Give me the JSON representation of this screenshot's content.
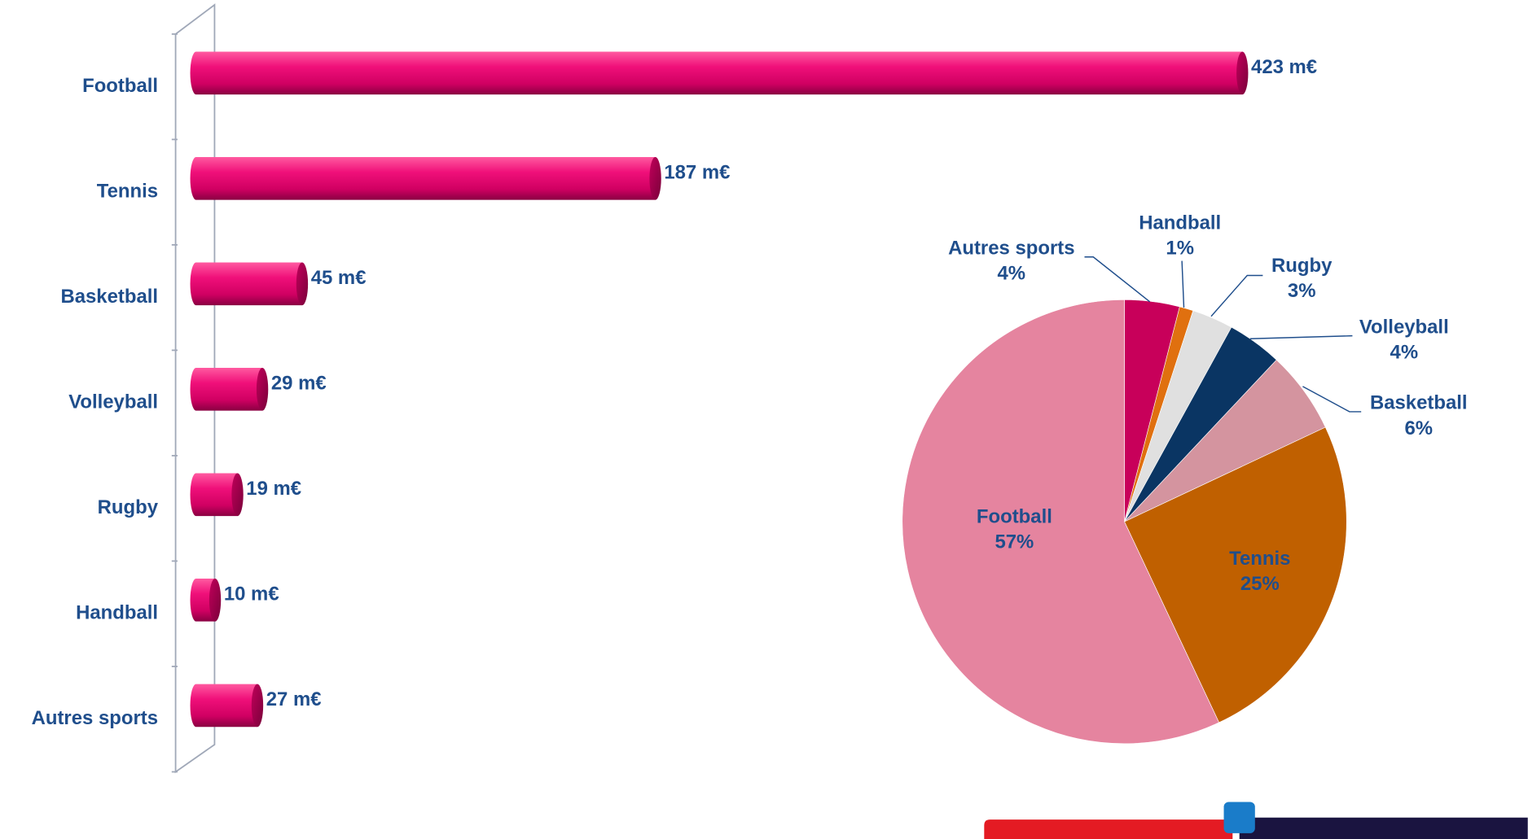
{
  "chart_data": [
    {
      "type": "bar",
      "orientation": "horizontal",
      "color": "#e8006e",
      "categories": [
        "Football",
        "Tennis",
        "Basketball",
        "Volleyball",
        "Rugby",
        "Handball",
        "Autres sports"
      ],
      "values": [
        423,
        187,
        45,
        29,
        19,
        10,
        27
      ],
      "value_labels": [
        "423 m€",
        "187 m€",
        "45 m€",
        "29 m€",
        "19 m€",
        "10 m€",
        "27 m€"
      ]
    },
    {
      "type": "pie",
      "categories": [
        "Autres sports",
        "Handball",
        "Rugby",
        "Volleyball",
        "Basketball",
        "Tennis",
        "Football"
      ],
      "values": [
        4,
        1,
        3,
        4,
        6,
        25,
        57
      ],
      "value_labels": [
        "4%",
        "1%",
        "3%",
        "4%",
        "6%",
        "25%",
        "57%"
      ],
      "colors": [
        "#c8005a",
        "#e0700f",
        "#e0e0e0",
        "#0a3563",
        "#d4949f",
        "#c06000",
        "#e5849f"
      ]
    }
  ]
}
